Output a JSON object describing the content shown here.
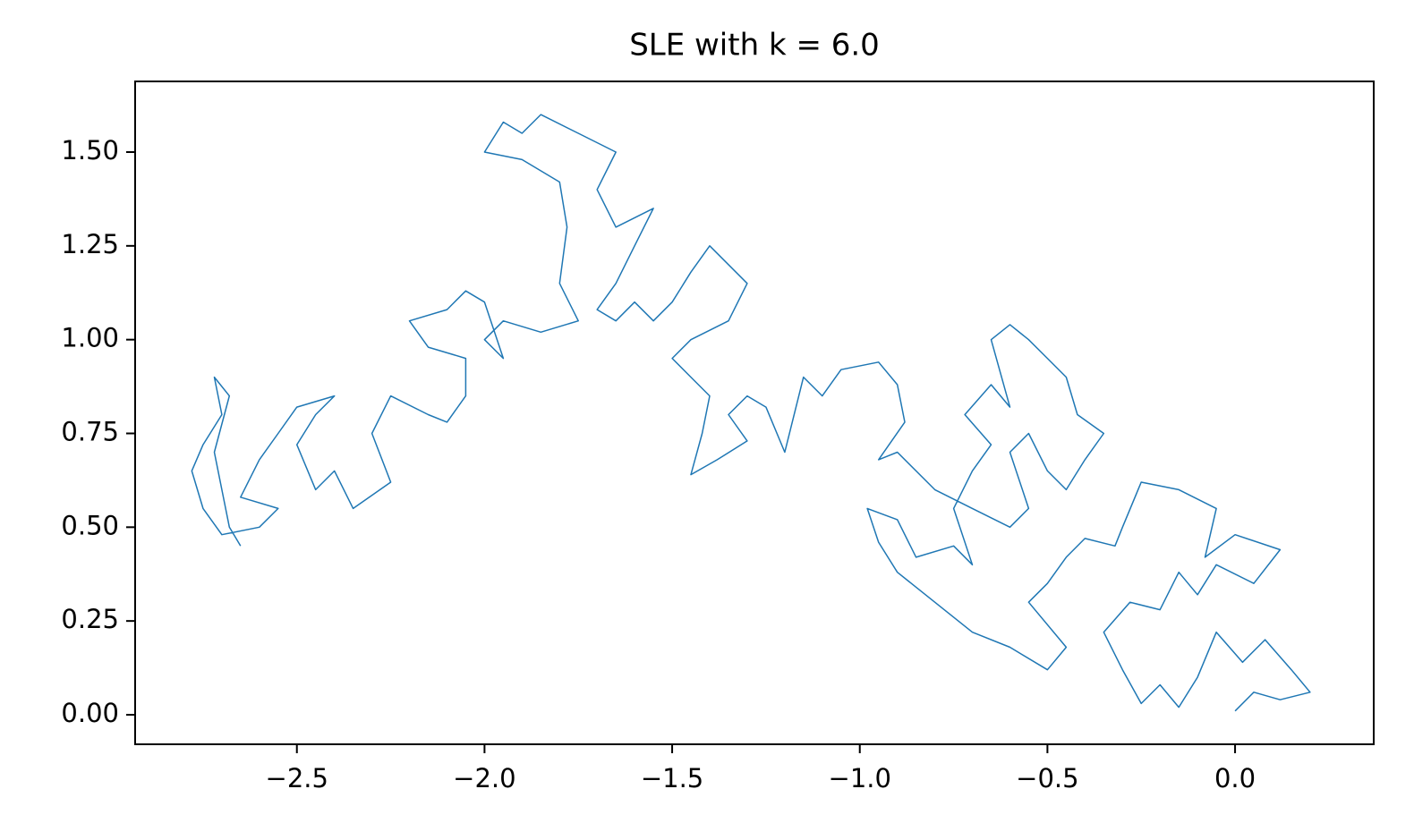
{
  "chart_data": {
    "type": "line",
    "title": "SLE with k = 6.0",
    "color": "#1f77b4",
    "x": [
      0.0,
      0.05,
      0.12,
      0.2,
      0.15,
      0.08,
      0.02,
      -0.05,
      -0.1,
      -0.15,
      -0.2,
      -0.25,
      -0.3,
      -0.35,
      -0.28,
      -0.2,
      -0.15,
      -0.1,
      -0.05,
      0.05,
      0.12,
      0.0,
      -0.08,
      -0.05,
      -0.15,
      -0.25,
      -0.3,
      -0.32,
      -0.4,
      -0.45,
      -0.5,
      -0.55,
      -0.45,
      -0.5,
      -0.6,
      -0.7,
      -0.8,
      -0.9,
      -0.95,
      -0.98,
      -0.9,
      -0.85,
      -0.75,
      -0.7,
      -0.75,
      -0.7,
      -0.65,
      -0.72,
      -0.65,
      -0.6,
      -0.65,
      -0.6,
      -0.55,
      -0.5,
      -0.45,
      -0.42,
      -0.35,
      -0.4,
      -0.45,
      -0.5,
      -0.55,
      -0.6,
      -0.55,
      -0.6,
      -0.7,
      -0.8,
      -0.9,
      -0.95,
      -0.88,
      -0.9,
      -0.95,
      -1.05,
      -1.1,
      -1.15,
      -1.2,
      -1.25,
      -1.3,
      -1.35,
      -1.3,
      -1.38,
      -1.45,
      -1.42,
      -1.4,
      -1.45,
      -1.5,
      -1.45,
      -1.35,
      -1.3,
      -1.4,
      -1.45,
      -1.5,
      -1.55,
      -1.6,
      -1.65,
      -1.7,
      -1.65,
      -1.6,
      -1.55,
      -1.65,
      -1.7,
      -1.65,
      -1.75,
      -1.85,
      -1.9,
      -1.95,
      -2.0,
      -1.9,
      -1.8,
      -1.78,
      -1.8,
      -1.75,
      -1.85,
      -1.95,
      -2.0,
      -1.95,
      -2.0,
      -2.05,
      -2.1,
      -2.2,
      -2.15,
      -2.05,
      -2.05,
      -2.1,
      -2.15,
      -2.25,
      -2.3,
      -2.25,
      -2.35,
      -2.4,
      -2.45,
      -2.5,
      -2.45,
      -2.4,
      -2.5,
      -2.55,
      -2.6,
      -2.65,
      -2.55,
      -2.6,
      -2.7,
      -2.75,
      -2.78,
      -2.75,
      -2.7,
      -2.72,
      -2.68,
      -2.72,
      -2.68,
      -2.65
    ],
    "values": [
      0.01,
      0.06,
      0.04,
      0.06,
      0.12,
      0.2,
      0.14,
      0.22,
      0.1,
      0.02,
      0.08,
      0.03,
      0.12,
      0.22,
      0.3,
      0.28,
      0.38,
      0.32,
      0.4,
      0.35,
      0.44,
      0.48,
      0.42,
      0.55,
      0.6,
      0.62,
      0.5,
      0.45,
      0.47,
      0.42,
      0.35,
      0.3,
      0.18,
      0.12,
      0.18,
      0.22,
      0.3,
      0.38,
      0.46,
      0.55,
      0.52,
      0.42,
      0.45,
      0.4,
      0.55,
      0.65,
      0.72,
      0.8,
      0.88,
      0.82,
      1.0,
      1.04,
      1.0,
      0.95,
      0.9,
      0.8,
      0.75,
      0.68,
      0.6,
      0.65,
      0.75,
      0.7,
      0.55,
      0.5,
      0.55,
      0.6,
      0.7,
      0.68,
      0.78,
      0.88,
      0.94,
      0.92,
      0.85,
      0.9,
      0.7,
      0.82,
      0.85,
      0.8,
      0.73,
      0.68,
      0.64,
      0.75,
      0.85,
      0.9,
      0.95,
      1.0,
      1.05,
      1.15,
      1.25,
      1.18,
      1.1,
      1.05,
      1.1,
      1.05,
      1.08,
      1.15,
      1.25,
      1.35,
      1.3,
      1.4,
      1.5,
      1.55,
      1.6,
      1.55,
      1.58,
      1.5,
      1.48,
      1.42,
      1.3,
      1.15,
      1.05,
      1.02,
      1.05,
      1.0,
      0.95,
      1.1,
      1.13,
      1.08,
      1.05,
      0.98,
      0.95,
      0.85,
      0.78,
      0.8,
      0.85,
      0.75,
      0.62,
      0.55,
      0.65,
      0.6,
      0.72,
      0.8,
      0.85,
      0.82,
      0.75,
      0.68,
      0.58,
      0.55,
      0.5,
      0.48,
      0.55,
      0.65,
      0.72,
      0.8,
      0.9,
      0.85,
      0.7,
      0.5,
      0.45
    ],
    "xlim": [
      -2.931,
      0.3695
    ],
    "ylim": [
      -0.0787,
      1.6884
    ],
    "xticks": [
      {
        "value": -2.5,
        "label": "−2.5"
      },
      {
        "value": -2.0,
        "label": "−2.0"
      },
      {
        "value": -1.5,
        "label": "−1.5"
      },
      {
        "value": -1.0,
        "label": "−1.0"
      },
      {
        "value": -0.5,
        "label": "−0.5"
      },
      {
        "value": 0,
        "label": "0.0"
      }
    ],
    "yticks": [
      {
        "value": 0,
        "label": "0.00"
      },
      0.25,
      {
        "value": 0.5,
        "label": "0.50"
      },
      0.75,
      {
        "value": 1,
        "label": "1.00"
      },
      1.25,
      {
        "value": 1.5,
        "label": "1.50"
      }
    ]
  }
}
